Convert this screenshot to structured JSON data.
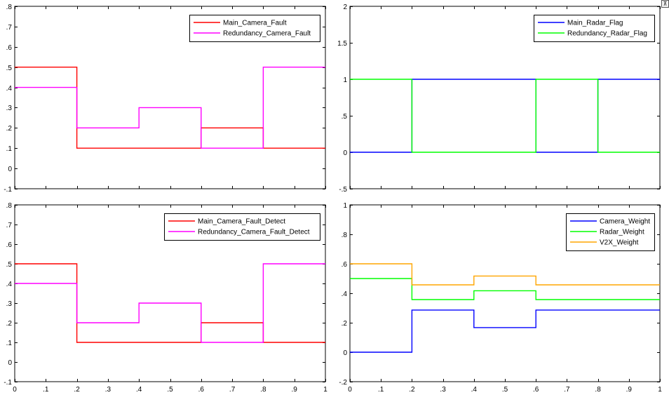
{
  "chart_data": [
    {
      "type": "line",
      "x": [
        0,
        0.2,
        0.4,
        0.6,
        0.8,
        1
      ],
      "xlim": [
        0,
        1
      ],
      "ylim": [
        -0.1,
        0.8
      ],
      "xticks": [],
      "yticks": [
        -0.1,
        0,
        0.1,
        0.2,
        0.3,
        0.4,
        0.5,
        0.6,
        0.7,
        0.8
      ],
      "legend_position": "top-right",
      "series": [
        {
          "name": "Main_Camera_Fault",
          "color": "#ff0000",
          "values": [
            0.5,
            0.1,
            0.1,
            0.2,
            0.1,
            0.1
          ]
        },
        {
          "name": "Redundancy_Camera_Fault",
          "color": "#ff00ff",
          "values": [
            0.4,
            0.2,
            0.3,
            0.1,
            0.5,
            0.5
          ]
        }
      ]
    },
    {
      "type": "line",
      "x": [
        0,
        0.2,
        0.4,
        0.6,
        0.8,
        1
      ],
      "xlim": [
        0,
        1
      ],
      "ylim": [
        -0.5,
        2
      ],
      "xticks": [],
      "yticks": [
        -0.5,
        0,
        0.5,
        1,
        1.5,
        2
      ],
      "legend_position": "top-right",
      "series": [
        {
          "name": "Main_Radar_Flag",
          "color": "#0000ff",
          "values": [
            0,
            1,
            1,
            0,
            1,
            1
          ]
        },
        {
          "name": "Redundancy_Radar_Flag",
          "color": "#00ff00",
          "values": [
            1,
            0,
            0,
            1,
            0,
            0
          ]
        }
      ]
    },
    {
      "type": "line",
      "x": [
        0,
        0.2,
        0.4,
        0.6,
        0.8,
        1
      ],
      "xlim": [
        0,
        1
      ],
      "ylim": [
        -0.1,
        0.8
      ],
      "xticks": [
        0,
        0.1,
        0.2,
        0.3,
        0.4,
        0.5,
        0.6,
        0.7,
        0.8,
        0.9,
        1
      ],
      "yticks": [
        -0.1,
        0,
        0.1,
        0.2,
        0.3,
        0.4,
        0.5,
        0.6,
        0.7,
        0.8
      ],
      "legend_position": "top-right",
      "series": [
        {
          "name": "Main_Camera_Fault_Detect",
          "color": "#ff0000",
          "values": [
            0.5,
            0.1,
            0.1,
            0.2,
            0.1,
            0.1
          ]
        },
        {
          "name": "Redundancy_Camera_Fault_Detect",
          "color": "#ff00ff",
          "values": [
            0.4,
            0.2,
            0.3,
            0.1,
            0.5,
            0.5
          ]
        }
      ]
    },
    {
      "type": "line",
      "x": [
        0,
        0.2,
        0.4,
        0.6,
        0.8,
        1
      ],
      "xlim": [
        0,
        1
      ],
      "ylim": [
        -0.2,
        1
      ],
      "xticks": [
        0,
        0.1,
        0.2,
        0.3,
        0.4,
        0.5,
        0.6,
        0.7,
        0.8,
        0.9,
        1
      ],
      "yticks": [
        -0.2,
        0,
        0.2,
        0.4,
        0.6,
        0.8,
        1
      ],
      "legend_position": "top-right",
      "series": [
        {
          "name": "Camera_Weight",
          "color": "#0000ff",
          "values": [
            0,
            0.286,
            0.167,
            0.286,
            0.286,
            0.286
          ]
        },
        {
          "name": "Radar_Weight",
          "color": "#00ff00",
          "values": [
            0.5,
            0.357,
            0.417,
            0.357,
            0.357,
            0.357
          ]
        },
        {
          "name": "V2X_Weight",
          "color": "#ffa500",
          "values": [
            0.6,
            0.457,
            0.517,
            0.457,
            0.457,
            0.457
          ]
        }
      ]
    }
  ],
  "toolbar": {
    "dock_icon": "dock-figure-icon",
    "dock_glyph": "⊼"
  }
}
